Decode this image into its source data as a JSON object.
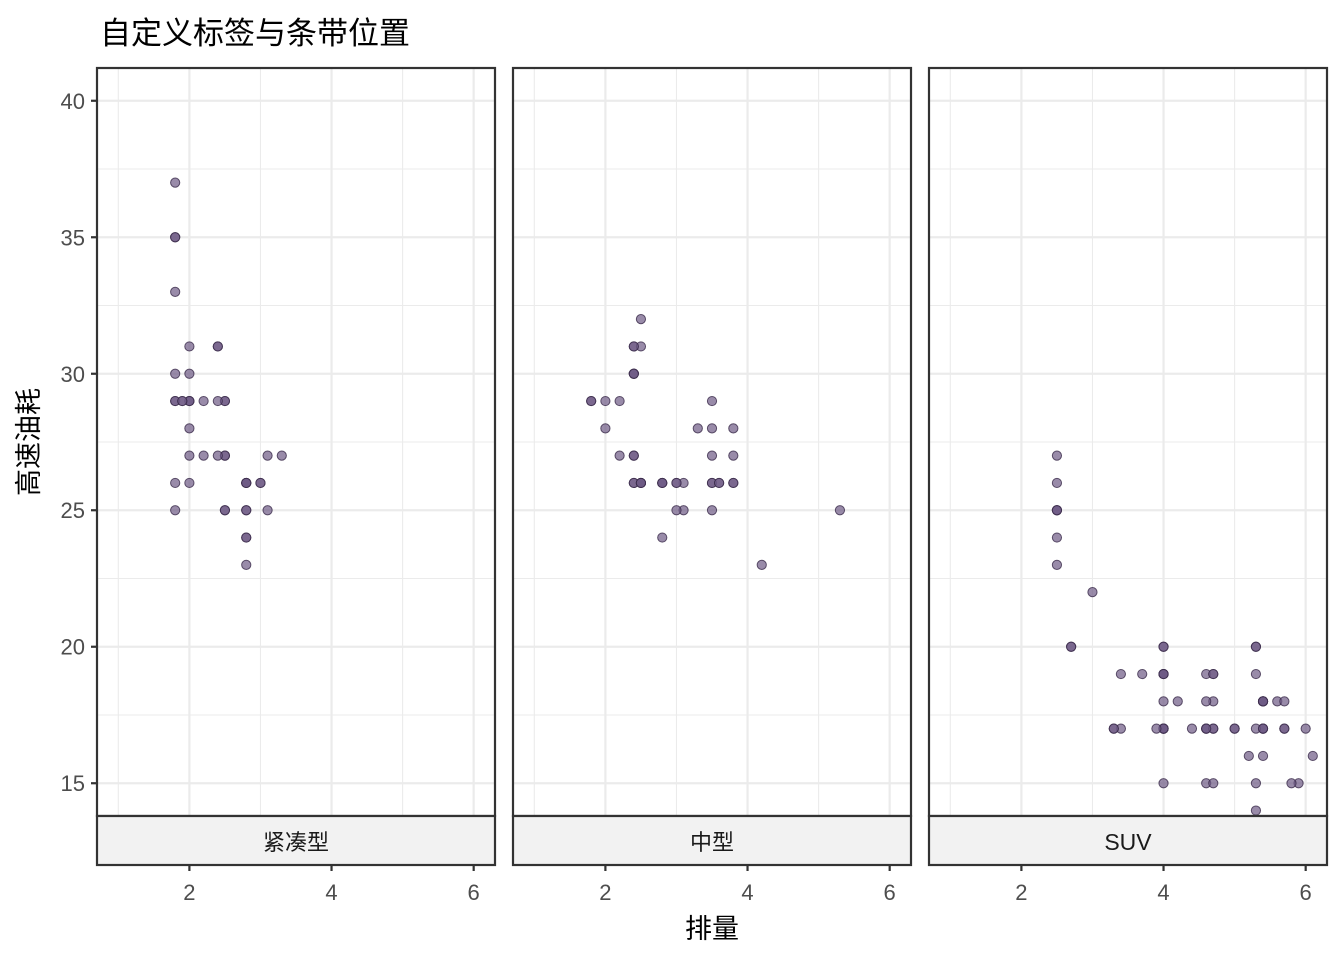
{
  "chart_data": {
    "type": "scatter",
    "title": "自定义标签与条带位置",
    "xlabel": "排量",
    "ylabel": "高速油耗",
    "xlim": [
      0.7,
      6.3
    ],
    "ylim": [
      13.8,
      41.2
    ],
    "x_ticks": [
      2,
      4,
      6
    ],
    "y_ticks": [
      15,
      20,
      25,
      30,
      35,
      40
    ],
    "x_minor_ticks": [
      1,
      3,
      5
    ],
    "y_minor_ticks": [
      17.5,
      22.5,
      27.5,
      32.5,
      37.5
    ],
    "grid": true,
    "strip_position": "bottom",
    "point_color": "#6e5a85",
    "point_alpha": 0.7,
    "panels": [
      {
        "label": "紧凑型",
        "points": [
          [
            1.8,
            29
          ],
          [
            1.8,
            29
          ],
          [
            2.0,
            31
          ],
          [
            2.0,
            30
          ],
          [
            2.8,
            26
          ],
          [
            2.8,
            26
          ],
          [
            3.1,
            27
          ],
          [
            1.8,
            26
          ],
          [
            1.8,
            25
          ],
          [
            2.0,
            28
          ],
          [
            2.0,
            29
          ],
          [
            2.8,
            25
          ],
          [
            2.8,
            25
          ],
          [
            3.1,
            25
          ],
          [
            2.0,
            26
          ],
          [
            2.0,
            29
          ],
          [
            2.0,
            27
          ],
          [
            2.0,
            29
          ],
          [
            2.2,
            29
          ],
          [
            2.2,
            27
          ],
          [
            2.4,
            31
          ],
          [
            2.4,
            31
          ],
          [
            3.0,
            26
          ],
          [
            3.0,
            26
          ],
          [
            3.3,
            27
          ],
          [
            1.8,
            30
          ],
          [
            1.8,
            33
          ],
          [
            1.8,
            35
          ],
          [
            1.8,
            37
          ],
          [
            1.8,
            35
          ],
          [
            2.5,
            25
          ],
          [
            2.5,
            25
          ],
          [
            2.5,
            27
          ],
          [
            2.5,
            27
          ],
          [
            2.5,
            29
          ],
          [
            2.5,
            29
          ],
          [
            2.8,
            24
          ],
          [
            2.8,
            23
          ],
          [
            2.8,
            24
          ],
          [
            1.9,
            29
          ],
          [
            1.9,
            29
          ],
          [
            2.4,
            27
          ],
          [
            2.4,
            29
          ],
          [
            2.8,
            26
          ],
          [
            2.8,
            26
          ]
        ]
      },
      {
        "label": "中型",
        "points": [
          [
            1.8,
            29
          ],
          [
            1.8,
            29
          ],
          [
            2.0,
            28
          ],
          [
            2.0,
            29
          ],
          [
            2.8,
            26
          ],
          [
            2.8,
            26
          ],
          [
            3.1,
            26
          ],
          [
            3.1,
            25
          ],
          [
            2.2,
            27
          ],
          [
            2.2,
            29
          ],
          [
            2.4,
            26
          ],
          [
            2.4,
            27
          ],
          [
            3.0,
            26
          ],
          [
            3.0,
            25
          ],
          [
            3.5,
            29
          ],
          [
            3.3,
            28
          ],
          [
            2.4,
            31
          ],
          [
            2.4,
            30
          ],
          [
            2.5,
            32
          ],
          [
            2.5,
            31
          ],
          [
            3.5,
            26
          ],
          [
            3.5,
            27
          ],
          [
            4.2,
            23
          ],
          [
            3.8,
            26
          ],
          [
            3.8,
            27
          ],
          [
            3.8,
            28
          ],
          [
            5.3,
            25
          ],
          [
            2.4,
            26
          ],
          [
            2.4,
            27
          ],
          [
            2.4,
            30
          ],
          [
            2.4,
            31
          ],
          [
            2.4,
            30
          ],
          [
            2.5,
            26
          ],
          [
            2.5,
            26
          ],
          [
            3.5,
            26
          ],
          [
            3.5,
            28
          ],
          [
            3.6,
            26
          ],
          [
            3.6,
            26
          ],
          [
            3.0,
            26
          ],
          [
            2.8,
            26
          ],
          [
            2.8,
            24
          ],
          [
            3.8,
            26
          ],
          [
            2.5,
            26
          ],
          [
            2.5,
            26
          ],
          [
            3.5,
            25
          ]
        ]
      },
      {
        "label": "SUV",
        "points": [
          [
            5.3,
            20
          ],
          [
            5.3,
            15
          ],
          [
            5.3,
            20
          ],
          [
            5.7,
            17
          ],
          [
            6.0,
            17
          ],
          [
            4.0,
            17
          ],
          [
            4.0,
            17
          ],
          [
            4.0,
            19
          ],
          [
            4.6,
            17
          ],
          [
            5.0,
            17
          ],
          [
            4.0,
            17
          ],
          [
            4.0,
            17
          ],
          [
            4.6,
            17
          ],
          [
            5.4,
            18
          ],
          [
            5.4,
            16
          ],
          [
            4.0,
            18
          ],
          [
            4.0,
            19
          ],
          [
            4.7,
            17
          ],
          [
            4.7,
            17
          ],
          [
            4.7,
            18
          ],
          [
            5.7,
            17
          ],
          [
            6.1,
            16
          ],
          [
            4.0,
            20
          ],
          [
            4.0,
            19
          ],
          [
            4.6,
            15
          ],
          [
            4.6,
            18
          ],
          [
            4.2,
            18
          ],
          [
            4.4,
            17
          ],
          [
            4.6,
            17
          ],
          [
            5.4,
            17
          ],
          [
            5.4,
            17
          ],
          [
            5.4,
            18
          ],
          [
            4.0,
            19
          ],
          [
            4.0,
            20
          ],
          [
            4.6,
            19
          ],
          [
            5.0,
            17
          ],
          [
            2.5,
            23
          ],
          [
            2.5,
            25
          ],
          [
            2.5,
            25
          ],
          [
            2.5,
            27
          ],
          [
            2.5,
            26
          ],
          [
            2.5,
            25
          ],
          [
            2.5,
            24
          ],
          [
            2.7,
            20
          ],
          [
            2.7,
            20
          ],
          [
            3.4,
            19
          ],
          [
            3.4,
            17
          ],
          [
            4.0,
            15
          ],
          [
            4.7,
            15
          ],
          [
            4.7,
            19
          ],
          [
            5.3,
            19
          ],
          [
            5.3,
            17
          ],
          [
            5.3,
            14
          ],
          [
            5.4,
            17
          ],
          [
            5.9,
            15
          ],
          [
            5.8,
            15
          ],
          [
            5.6,
            18
          ],
          [
            5.4,
            18
          ],
          [
            3.0,
            22
          ],
          [
            3.3,
            17
          ],
          [
            3.3,
            17
          ],
          [
            3.7,
            19
          ],
          [
            3.9,
            17
          ],
          [
            4.7,
            19
          ],
          [
            5.2,
            16
          ],
          [
            5.7,
            18
          ],
          [
            5.4,
            18
          ]
        ]
      }
    ]
  }
}
